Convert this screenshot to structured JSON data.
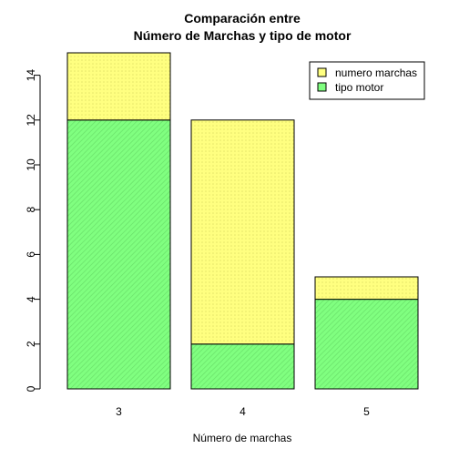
{
  "chart_data": {
    "type": "bar",
    "stacked": true,
    "title_line1": "Comparación entre",
    "title_line2": "Número de Marchas y tipo de motor",
    "xlabel": "Número de marchas",
    "ylabel": "",
    "categories": [
      "3",
      "4",
      "5"
    ],
    "ylim": [
      0,
      15
    ],
    "yticks": [
      0,
      2,
      4,
      6,
      8,
      10,
      12,
      14
    ],
    "series": [
      {
        "name": "tipo motor",
        "values": [
          12,
          2,
          4
        ],
        "color": "#80ff80"
      },
      {
        "name": "numero marchas",
        "values": [
          3,
          10,
          1
        ],
        "color": "#ffff80"
      }
    ],
    "legend_order": [
      "numero marchas",
      "tipo motor"
    ],
    "legend_position": "top-right",
    "grid": false
  }
}
